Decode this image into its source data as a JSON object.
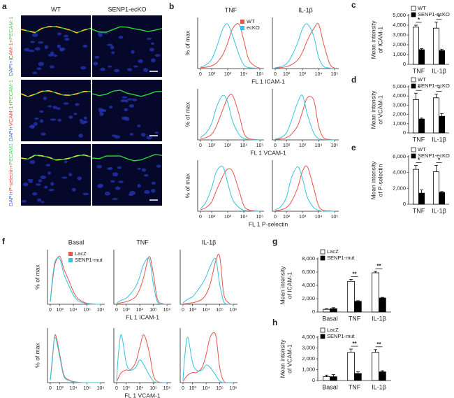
{
  "micrographs": {
    "label": "a",
    "columns": [
      "WT",
      "SENP1-ecKO"
    ],
    "rows": [
      [
        "DAPI+",
        "ICAM-1+",
        "PECAM-1"
      ],
      [
        "DAPI+",
        "VCAM-1+",
        "PECAM-1"
      ],
      [
        "DAPI+",
        "P-selectin+",
        "PECAM1"
      ]
    ]
  },
  "chart_data": [
    {
      "type": "histogram-grid",
      "label": "b",
      "columns": [
        "TNF",
        "IL-1β"
      ],
      "ylabel": "% of max",
      "x": [
        0,
        50,
        100,
        200,
        500,
        1000,
        2000,
        5000,
        10000,
        20000,
        50000,
        100000
      ],
      "xlim": [
        0,
        100000
      ],
      "ylim": [
        0,
        100
      ],
      "xticks": [
        0,
        {
          "value": 100,
          "label": "10²"
        },
        {
          "value": 1000,
          "label": "10³"
        },
        {
          "value": 10000,
          "label": "10⁴"
        },
        {
          "value": 100000,
          "label": "10⁵"
        }
      ],
      "legend": "upper right",
      "series": [
        {
          "name": "WT",
          "color": "#e8534a"
        },
        {
          "name": "ecKO",
          "color": "#35c3e0"
        }
      ],
      "rows": [
        {
          "xlabel": "FL 1 ICAM-1",
          "cells": [
            [
              [
                2,
                3,
                6,
                12,
                30,
                55,
                85,
                95,
                60,
                20,
                5,
                1
              ],
              [
                3,
                8,
                20,
                45,
                85,
                95,
                70,
                30,
                8,
                2,
                1,
                0
              ]
            ],
            [
              [
                1,
                2,
                4,
                8,
                18,
                35,
                60,
                85,
                95,
                55,
                10,
                1
              ],
              [
                2,
                4,
                10,
                25,
                55,
                85,
                95,
                70,
                25,
                5,
                1,
                0
              ]
            ]
          ]
        },
        {
          "xlabel": "FL 1 VCAM-1",
          "cells": [
            [
              [
                2,
                5,
                12,
                30,
                65,
                90,
                95,
                55,
                15,
                3,
                1,
                0
              ],
              [
                5,
                15,
                35,
                70,
                95,
                80,
                40,
                12,
                3,
                1,
                0,
                0
              ]
            ],
            [
              [
                1,
                2,
                5,
                12,
                30,
                60,
                90,
                85,
                30,
                5,
                1,
                0
              ],
              [
                2,
                5,
                15,
                40,
                80,
                95,
                55,
                15,
                3,
                1,
                0,
                0
              ]
            ]
          ]
        },
        {
          "xlabel": "FL 1 P-selectin",
          "cells": [
            [
              [
                3,
                8,
                20,
                45,
                75,
                90,
                85,
                45,
                12,
                3,
                1,
                0
              ],
              [
                5,
                20,
                50,
                85,
                95,
                60,
                25,
                8,
                2,
                1,
                0,
                0
              ]
            ],
            [
              [
                1,
                3,
                8,
                20,
                50,
                85,
                95,
                50,
                12,
                2,
                1,
                0
              ],
              [
                3,
                10,
                30,
                70,
                95,
                70,
                30,
                8,
                2,
                0,
                0,
                0
              ]
            ]
          ]
        }
      ]
    },
    {
      "type": "bar",
      "label": "c",
      "categories": [
        "TNF",
        "IL-1β"
      ],
      "ylabel": [
        "Mean intensity",
        "of ICAM-1"
      ],
      "ylim": [
        0,
        5000
      ],
      "yticks": [
        0,
        {
          "value": 1000,
          "label": "1,000"
        },
        {
          "value": 2000,
          "label": "2,000"
        },
        {
          "value": 3000,
          "label": "3,000"
        },
        {
          "value": 4000,
          "label": "4,000"
        },
        {
          "value": 5000,
          "label": "5,000"
        }
      ],
      "legend": "upper left",
      "series": [
        {
          "name": "WT",
          "color": "#ffffff",
          "values": [
            3800,
            3700
          ],
          "errors": [
            200,
            600
          ]
        },
        {
          "name": "SENP1-ecKO",
          "color": "#000000",
          "values": [
            1500,
            1400
          ],
          "errors": [
            100,
            150
          ]
        }
      ],
      "significance": [
        "*",
        "*"
      ]
    },
    {
      "type": "bar",
      "label": "d",
      "categories": [
        "TNF",
        "IL-1β"
      ],
      "ylabel": [
        "Mean intensity",
        "of VCAM-1"
      ],
      "ylim": [
        0,
        5000
      ],
      "yticks": [
        0,
        {
          "value": 1000,
          "label": "1,000"
        },
        {
          "value": 2000,
          "label": "2,000"
        },
        {
          "value": 3000,
          "label": "3,000"
        },
        {
          "value": 4000,
          "label": "4,000"
        },
        {
          "value": 5000,
          "label": "5,000"
        }
      ],
      "legend": "upper left",
      "series": [
        {
          "name": "WT",
          "color": "#ffffff",
          "values": [
            3600,
            3800
          ],
          "errors": [
            700,
            400
          ]
        },
        {
          "name": "SENP1-ecKO",
          "color": "#000000",
          "values": [
            1500,
            1800
          ],
          "errors": [
            100,
            300
          ]
        }
      ],
      "significance": [
        "*",
        "*"
      ]
    },
    {
      "type": "bar",
      "label": "e",
      "categories": [
        "TNF",
        "IL-1β"
      ],
      "ylabel": [
        "Mean intensity",
        "of P-selectin"
      ],
      "ylim": [
        0,
        6000
      ],
      "yticks": [
        0,
        {
          "value": 2000,
          "label": "2,000"
        },
        {
          "value": 4000,
          "label": "4,000"
        },
        {
          "value": 6000,
          "label": "6,000"
        }
      ],
      "legend": "upper left",
      "series": [
        {
          "name": "WT",
          "color": "#ffffff",
          "values": [
            4400,
            4100
          ],
          "errors": [
            500,
            800
          ]
        },
        {
          "name": "SENP1-ecKO",
          "color": "#000000",
          "values": [
            1400,
            1500
          ],
          "errors": [
            400,
            100
          ]
        }
      ],
      "significance": [
        "*",
        "*"
      ]
    },
    {
      "type": "histogram-grid",
      "label": "f",
      "columns": [
        "Basal",
        "TNF",
        "IL-1β"
      ],
      "ylabel": "% of max",
      "x": [
        0,
        200,
        500,
        1000,
        2000,
        5000,
        10000,
        20000,
        50000,
        100000,
        200000,
        500000,
        1000000
      ],
      "xlim": [
        0,
        1000000
      ],
      "ylim": [
        0,
        100
      ],
      "xticks": [
        0,
        {
          "value": 1000,
          "label": "10³"
        },
        {
          "value": 10000,
          "label": "10⁴"
        },
        {
          "value": 100000,
          "label": "10⁵"
        },
        {
          "value": 1000000,
          "label": "10⁶"
        }
      ],
      "legend": "upper right",
      "series": [
        {
          "name": "LacZ",
          "color": "#e8534a"
        },
        {
          "name": "SENP1-mut",
          "color": "#35c3e0"
        }
      ],
      "rows": [
        {
          "xlabel": "FL 1 ICAM-1",
          "cells": [
            [
              [
                5,
                40,
                80,
                95,
                70,
                45,
                25,
                12,
                5,
                2,
                1,
                0,
                0
              ],
              [
                5,
                45,
                85,
                90,
                60,
                35,
                18,
                8,
                3,
                1,
                0,
                0,
                0
              ]
            ],
            [
              [
                0,
                2,
                3,
                5,
                8,
                15,
                30,
                55,
                95,
                60,
                10,
                1,
                0
              ],
              [
                2,
                5,
                8,
                12,
                20,
                35,
                55,
                80,
                90,
                40,
                5,
                0,
                0
              ]
            ],
            [
              [
                0,
                1,
                2,
                3,
                5,
                10,
                20,
                40,
                85,
                95,
                20,
                2,
                0
              ],
              [
                2,
                6,
                10,
                15,
                25,
                40,
                55,
                75,
                90,
                40,
                5,
                0,
                0
              ]
            ]
          ]
        },
        {
          "xlabel": "FL 1 VCAM-1",
          "cells": [
            [
              [
                5,
                40,
                95,
                55,
                15,
                5,
                2,
                1,
                0,
                0,
                0,
                0,
                0
              ],
              [
                5,
                45,
                90,
                50,
                12,
                4,
                1,
                0,
                0,
                0,
                0,
                0,
                0
              ]
            ],
            [
              [
                2,
                10,
                20,
                25,
                25,
                40,
                70,
                95,
                60,
                15,
                2,
                0,
                0
              ],
              [
                5,
                60,
                95,
                40,
                25,
                30,
                45,
                35,
                15,
                3,
                0,
                0,
                0
              ]
            ],
            [
              [
                2,
                8,
                15,
                20,
                20,
                30,
                55,
                90,
                95,
                30,
                3,
                0,
                0
              ],
              [
                5,
                55,
                90,
                40,
                25,
                25,
                35,
                30,
                15,
                3,
                0,
                0,
                0
              ]
            ]
          ]
        }
      ]
    },
    {
      "type": "bar",
      "label": "g",
      "categories": [
        "Basal",
        "TNF",
        "IL-1β"
      ],
      "ylabel": [
        "Mean intensity",
        "of ICAM-1"
      ],
      "ylim": [
        0,
        8000
      ],
      "yticks": [
        0,
        {
          "value": 2000,
          "label": "2,000"
        },
        {
          "value": 4000,
          "label": "4,000"
        },
        {
          "value": 6000,
          "label": "6,000"
        },
        {
          "value": 8000,
          "label": "8,000"
        }
      ],
      "legend": "upper left",
      "series": [
        {
          "name": "LacZ",
          "color": "#ffffff",
          "values": [
            400,
            4600,
            5900
          ],
          "errors": [
            100,
            300,
            200
          ]
        },
        {
          "name": "SENP1-mut",
          "color": "#000000",
          "values": [
            500,
            1600,
            2100
          ],
          "errors": [
            150,
            100,
            100
          ]
        }
      ],
      "significance": [
        null,
        "**",
        "**"
      ]
    },
    {
      "type": "bar",
      "label": "h",
      "categories": [
        "Basal",
        "TNF",
        "IL-1β"
      ],
      "ylabel": [
        "Mean intensity",
        "of VCAM-1"
      ],
      "ylim": [
        0,
        4000
      ],
      "yticks": [
        0,
        {
          "value": 1000,
          "label": "1,000"
        },
        {
          "value": 2000,
          "label": "2,000"
        },
        {
          "value": 3000,
          "label": "3,000"
        },
        {
          "value": 4000,
          "label": "4,000"
        }
      ],
      "legend": "upper left",
      "series": [
        {
          "name": "LacZ",
          "color": "#ffffff",
          "values": [
            350,
            2600,
            2600
          ],
          "errors": [
            150,
            300,
            250
          ]
        },
        {
          "name": "SENP1-mut",
          "color": "#000000",
          "values": [
            350,
            650,
            800
          ],
          "errors": [
            200,
            150,
            100
          ]
        }
      ],
      "significance": [
        null,
        "**",
        "**"
      ]
    }
  ]
}
